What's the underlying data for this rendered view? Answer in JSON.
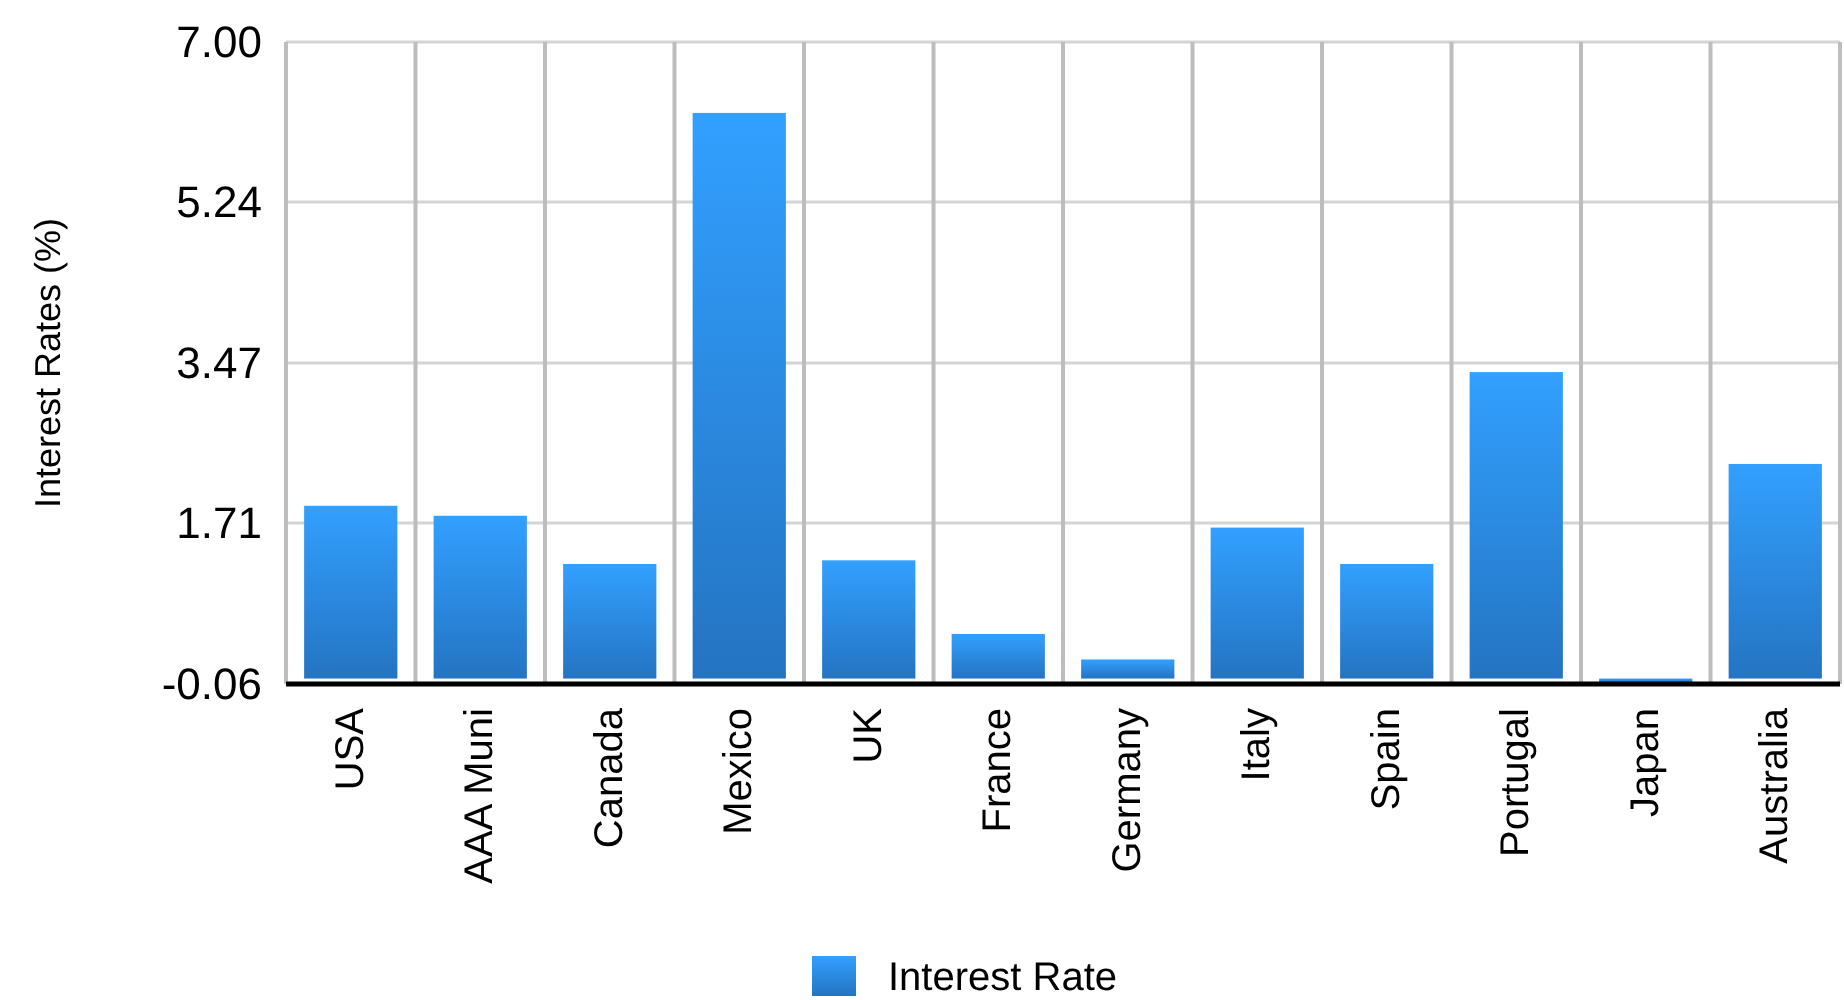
{
  "chart_data": {
    "type": "bar",
    "ylabel": "Interest Rates (%)",
    "categories": [
      "USA",
      "AAA Muni",
      "Canada",
      "Mexico",
      "UK",
      "France",
      "Germany",
      "Italy",
      "Spain",
      "Portugal",
      "Japan",
      "Australia"
    ],
    "series": [
      {
        "name": "Interest Rate",
        "color": "#2a86e0",
        "values": [
          1.9,
          1.79,
          1.26,
          6.22,
          1.3,
          0.49,
          0.21,
          1.66,
          1.26,
          3.37,
          -0.04,
          2.36
        ]
      }
    ],
    "ylim": [
      -0.06,
      7.0
    ],
    "yticks": [
      -0.06,
      1.71,
      3.47,
      5.24,
      {
        "value": 7,
        "label": "7.00"
      }
    ],
    "grid": true,
    "legend": "bottom"
  }
}
